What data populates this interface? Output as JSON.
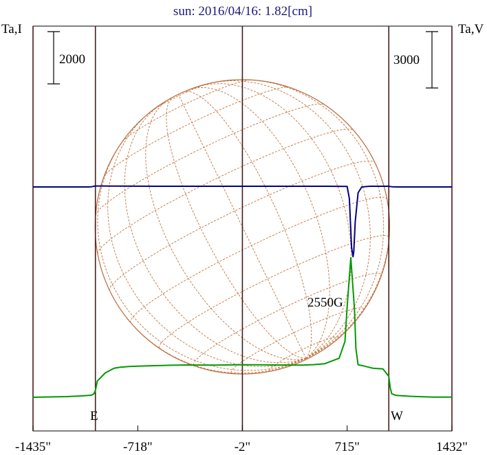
{
  "chart_data": {
    "type": "line",
    "title": "sun: 2016/04/16: 1.82[cm]",
    "left_axis_label": "Ta,I",
    "right_axis_label": "Ta,V",
    "left_scale_bar": "2000",
    "right_scale_bar": "3000",
    "x_ticks": [
      -1435,
      -718,
      -2,
      715,
      1432
    ],
    "x_tick_labels": [
      "-1435\"",
      "-718\"",
      "-2\"",
      "715\"",
      "1432\""
    ],
    "xlim": [
      -1435,
      1432
    ],
    "limb_labels": {
      "east": "E",
      "west": "W"
    },
    "annotation": "2550G",
    "vertical_marker_lines": [
      -1435,
      -1008,
      -2,
      1432
    ],
    "grid": false,
    "series": [
      {
        "color": "#009900",
        "x": [
          -1435,
          -1200,
          -1100,
          -1035,
          -1018,
          -1008,
          -995,
          -940,
          -880,
          -840,
          -780,
          -718,
          -600,
          -400,
          -200,
          -2,
          200,
          400,
          480,
          560,
          660,
          700,
          715,
          740,
          765,
          775,
          790,
          825,
          890,
          960,
          1000,
          1010,
          1020,
          1050,
          1150,
          1300,
          1432
        ],
        "values": [
          0,
          30,
          60,
          90,
          150,
          300,
          700,
          1050,
          1250,
          1290,
          1320,
          1340,
          1360,
          1390,
          1380,
          1400,
          1390,
          1380,
          1400,
          1440,
          1680,
          2400,
          3900,
          6000,
          3800,
          2100,
          1400,
          1350,
          1250,
          1220,
          900,
          400,
          150,
          80,
          40,
          10,
          5
        ]
      },
      {
        "color": "#000080",
        "x": [
          -1435,
          -1060,
          -1035,
          -1008,
          -980,
          -600,
          -200,
          -2,
          400,
          580,
          715,
          730,
          745,
          755,
          760,
          770,
          790,
          815,
          870,
          1000,
          1020,
          1060,
          1432
        ],
        "values": [
          0,
          0,
          10,
          40,
          40,
          30,
          30,
          30,
          30,
          30,
          20,
          -500,
          -2600,
          -3000,
          -2800,
          -1500,
          -250,
          0,
          30,
          30,
          10,
          0,
          0
        ]
      }
    ],
    "disk": {
      "center_x": -2,
      "radius_arcsec": 1008,
      "grid_lines": "heliographic, dashed"
    }
  }
}
